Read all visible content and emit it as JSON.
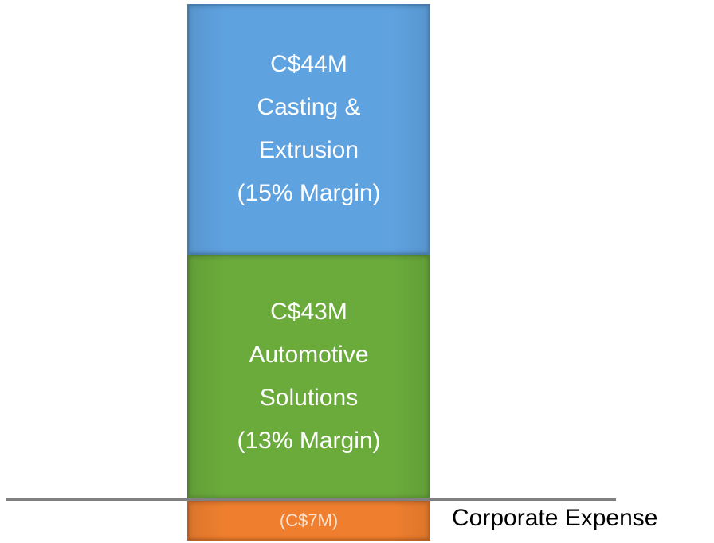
{
  "chart_data": {
    "type": "bar",
    "stacked": true,
    "series": [
      {
        "name": "Automotive Solutions",
        "color": "#6bab3c",
        "values": [
          43
        ],
        "value_labels": [
          "C$43M"
        ],
        "margin_label": "(13% Margin)"
      },
      {
        "name": "Casting & Extrusion",
        "color": "#5fa2e0",
        "values": [
          44
        ],
        "value_labels": [
          "C$44M"
        ],
        "margin_label": "(15% Margin)"
      },
      {
        "name": "Corporate Expense",
        "color": "#ef7f2f",
        "values": [
          -7
        ],
        "value_labels": [
          "(C$7M)"
        ]
      }
    ]
  }
}
